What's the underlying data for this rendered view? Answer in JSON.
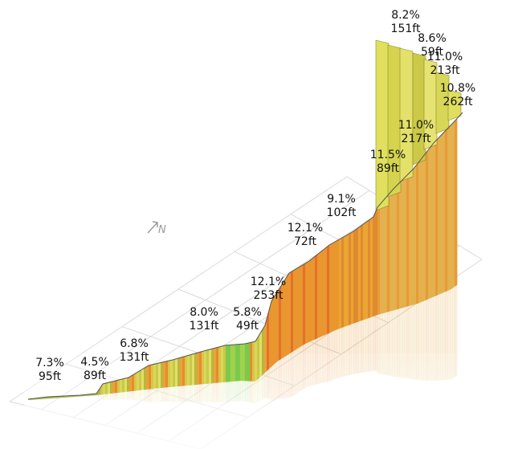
{
  "chart_data": {
    "type": "area",
    "segments": [
      {
        "grade": "7.3%",
        "rise": "95ft"
      },
      {
        "grade": "4.5%",
        "rise": "89ft"
      },
      {
        "grade": "6.8%",
        "rise": "131ft"
      },
      {
        "grade": "8.0%",
        "rise": "131ft"
      },
      {
        "grade": "5.8%",
        "rise": "49ft"
      },
      {
        "grade": "12.1%",
        "rise": "253ft"
      },
      {
        "grade": "12.1%",
        "rise": "72ft"
      },
      {
        "grade": "9.1%",
        "rise": "102ft"
      },
      {
        "grade": "11.5%",
        "rise": "89ft"
      },
      {
        "grade": "11.0%",
        "rise": "217ft"
      },
      {
        "grade": "10.8%",
        "rise": "262ft"
      },
      {
        "grade": "11.0%",
        "rise": "213ft"
      },
      {
        "grade": "8.6%",
        "rise": "59ft"
      },
      {
        "grade": "8.2%",
        "rise": "151ft"
      }
    ],
    "north_label": "N",
    "grid": true
  }
}
